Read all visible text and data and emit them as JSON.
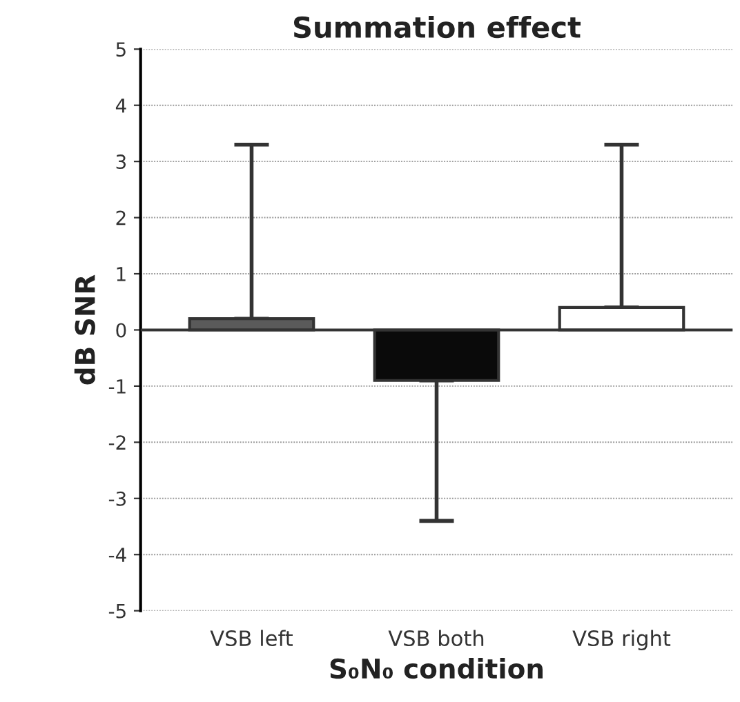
{
  "chart_data": {
    "type": "bar",
    "title": "Summation effect",
    "xlabel": "S₀N₀ condition",
    "ylabel": "dB SNR",
    "categories": [
      "VSB left",
      "VSB both",
      "VSB right"
    ],
    "values": [
      0.2,
      -0.9,
      0.4
    ],
    "colors": [
      "#5a5a5a",
      "#0a0a0a",
      "#ffffff"
    ],
    "errors": [
      [
        0.2,
        3.3
      ],
      [
        -3.4,
        -0.9
      ],
      [
        0.4,
        3.3
      ]
    ],
    "ylim": [
      -5,
      5
    ],
    "yticks": [
      -5,
      -4,
      -3,
      -2,
      -1,
      0,
      1,
      2,
      3,
      4,
      5
    ],
    "grid": "y"
  }
}
